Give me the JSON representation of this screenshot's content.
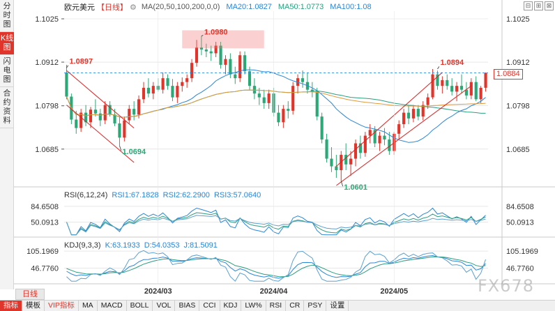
{
  "side_tabs": [
    {
      "label": "分时图",
      "active": false
    },
    {
      "label": "K线图",
      "active": true
    },
    {
      "label": "闪电图",
      "active": false
    },
    {
      "label": "合约资料",
      "active": false
    }
  ],
  "legend": {
    "symbol": "欧元美元",
    "period": "【日线】",
    "gear": "⚙",
    "ma_label": "MA(20,50,100,200,0,0)",
    "ma20": "MA20:1.0827",
    "ma50": "MA50:1.0773",
    "ma100": "MA100:1.08"
  },
  "rsi_legend": {
    "label": "RSI(6,12,24)",
    "rsi1": "RSI1:67.1828",
    "rsi2": "RSI2:62.2900",
    "rsi3": "RSI3:57.0640"
  },
  "kdj_legend": {
    "label": "KDJ(9,3,3)",
    "k": "K:63.1933",
    "d": "D:54.0353",
    "j": "J:81.5091"
  },
  "top_icons": [
    "⊟",
    "⊞",
    "⊠"
  ],
  "price_tag": "1.0884",
  "period_chip": "日线",
  "bottom_tabs": [
    "指标",
    "模板",
    "VIP指标",
    "MA",
    "MACD",
    "BOLL",
    "VOL",
    "BIAS",
    "CCI",
    "KDJ",
    "LW%",
    "RSI",
    "CR",
    "PSY",
    "设置"
  ],
  "watermark": "FX678",
  "colors": {
    "up": "#e0352b",
    "down": "#2aa876",
    "ma20": "#2a86d6",
    "ma50": "#2a9e7e",
    "ma100": "#e09a3a",
    "grid": "#d9d9d9"
  },
  "chart_data": {
    "type": "candlestick",
    "price_axis_ticks": [
      "1.1025",
      "1.0912",
      "1.0798",
      "1.0685"
    ],
    "price_ylim": [
      1.059,
      1.1045
    ],
    "annotations": {
      "high_1": "1.0980",
      "high_2": "1.0897",
      "low_1": "1.0694",
      "low_2": "1.0601",
      "high_3": "1.0894"
    },
    "rsi_axis_ticks": [
      "84.6508",
      "50.0913"
    ],
    "kdj_axis_ticks": [
      "105.1969",
      "46.7760"
    ],
    "x_tick_labels": [
      "2024/03",
      "2024/04",
      "2024/05"
    ],
    "candles": [
      [
        1.0885,
        1.0905,
        1.0815,
        1.0822
      ],
      [
        1.0822,
        1.083,
        1.075,
        1.0762
      ],
      [
        1.0762,
        1.0785,
        1.0725,
        1.074
      ],
      [
        1.074,
        1.079,
        1.073,
        1.078
      ],
      [
        1.078,
        1.08,
        1.0745,
        1.0755
      ],
      [
        1.0755,
        1.0795,
        1.074,
        1.0788
      ],
      [
        1.0788,
        1.0815,
        1.077,
        1.0778
      ],
      [
        1.0778,
        1.079,
        1.0745,
        1.076
      ],
      [
        1.076,
        1.081,
        1.075,
        1.08
      ],
      [
        1.08,
        1.081,
        1.077,
        1.0775
      ],
      [
        1.0775,
        1.079,
        1.0745,
        1.0752
      ],
      [
        1.0752,
        1.077,
        1.0694,
        1.0715
      ],
      [
        1.0715,
        1.077,
        1.0705,
        1.076
      ],
      [
        1.076,
        1.08,
        1.075,
        1.079
      ],
      [
        1.079,
        1.081,
        1.076,
        1.0775
      ],
      [
        1.0775,
        1.0825,
        1.0765,
        1.0815
      ],
      [
        1.0815,
        1.086,
        1.0805,
        1.0845
      ],
      [
        1.0845,
        1.087,
        1.082,
        1.083
      ],
      [
        1.083,
        1.086,
        1.0815,
        1.085
      ],
      [
        1.085,
        1.087,
        1.0835,
        1.084
      ],
      [
        1.084,
        1.0885,
        1.083,
        1.087
      ],
      [
        1.087,
        1.088,
        1.084,
        1.085
      ],
      [
        1.085,
        1.0868,
        1.081,
        1.082
      ],
      [
        1.082,
        1.086,
        1.0805,
        1.085
      ],
      [
        1.085,
        1.0872,
        1.0835,
        1.086
      ],
      [
        1.086,
        1.088,
        1.0845,
        1.087
      ],
      [
        1.087,
        1.092,
        1.086,
        1.091
      ],
      [
        1.091,
        1.097,
        1.09,
        1.095
      ],
      [
        1.095,
        1.098,
        1.093,
        1.0945
      ],
      [
        1.0945,
        1.096,
        1.0925,
        1.094
      ],
      [
        1.094,
        1.0955,
        1.0915,
        1.0935
      ],
      [
        1.0935,
        1.0965,
        1.0925,
        1.0955
      ],
      [
        1.0955,
        1.0965,
        1.0895,
        1.0905
      ],
      [
        1.0905,
        1.093,
        1.088,
        1.092
      ],
      [
        1.092,
        1.0935,
        1.087,
        1.088
      ],
      [
        1.088,
        1.09,
        1.0855,
        1.087
      ],
      [
        1.087,
        1.094,
        1.086,
        1.093
      ],
      [
        1.093,
        1.094,
        1.088,
        1.0888
      ],
      [
        1.0888,
        1.09,
        1.084,
        1.085
      ],
      [
        1.085,
        1.087,
        1.0815,
        1.083
      ],
      [
        1.083,
        1.0845,
        1.08,
        1.082
      ],
      [
        1.082,
        1.084,
        1.079,
        1.0805
      ],
      [
        1.0805,
        1.084,
        1.079,
        1.083
      ],
      [
        1.083,
        1.0845,
        1.077,
        1.078
      ],
      [
        1.078,
        1.08,
        1.0745,
        1.0755
      ],
      [
        1.0755,
        1.08,
        1.074,
        1.079
      ],
      [
        1.079,
        1.081,
        1.0765,
        1.0785
      ],
      [
        1.0785,
        1.086,
        1.0775,
        1.085
      ],
      [
        1.085,
        1.088,
        1.083,
        1.087
      ],
      [
        1.087,
        1.089,
        1.0845,
        1.086
      ],
      [
        1.086,
        1.0885,
        1.083,
        1.084
      ],
      [
        1.084,
        1.086,
        1.082,
        1.0835
      ],
      [
        1.0835,
        1.0845,
        1.076,
        1.077
      ],
      [
        1.077,
        1.078,
        1.07,
        1.071
      ],
      [
        1.071,
        1.0725,
        1.065,
        1.066
      ],
      [
        1.066,
        1.069,
        1.0625,
        1.064
      ],
      [
        1.064,
        1.067,
        1.061,
        1.063
      ],
      [
        1.063,
        1.068,
        1.0601,
        1.067
      ],
      [
        1.067,
        1.07,
        1.063,
        1.0645
      ],
      [
        1.0645,
        1.068,
        1.0615,
        1.066
      ],
      [
        1.066,
        1.071,
        1.064,
        1.07
      ],
      [
        1.07,
        1.072,
        1.066,
        1.0675
      ],
      [
        1.0675,
        1.073,
        1.0665,
        1.072
      ],
      [
        1.072,
        1.075,
        1.07,
        1.0735
      ],
      [
        1.0735,
        1.0745,
        1.069,
        1.07
      ],
      [
        1.07,
        1.073,
        1.068,
        1.072
      ],
      [
        1.072,
        1.074,
        1.0695,
        1.071
      ],
      [
        1.071,
        1.073,
        1.067,
        1.068
      ],
      [
        1.068,
        1.073,
        1.067,
        1.0725
      ],
      [
        1.0725,
        1.076,
        1.071,
        1.075
      ],
      [
        1.075,
        1.079,
        1.074,
        1.078
      ],
      [
        1.078,
        1.08,
        1.075,
        1.0765
      ],
      [
        1.0765,
        1.08,
        1.0755,
        1.079
      ],
      [
        1.079,
        1.08,
        1.076,
        1.077
      ],
      [
        1.077,
        1.081,
        1.076,
        1.08
      ],
      [
        1.08,
        1.083,
        1.079,
        1.082
      ],
      [
        1.082,
        1.0894,
        1.0815,
        1.088
      ],
      [
        1.088,
        1.089,
        1.084,
        1.085
      ],
      [
        1.085,
        1.0875,
        1.083,
        1.0865
      ],
      [
        1.0865,
        1.088,
        1.084,
        1.085
      ],
      [
        1.085,
        1.087,
        1.0825,
        1.0835
      ],
      [
        1.0835,
        1.086,
        1.081,
        1.085
      ],
      [
        1.085,
        1.088,
        1.083,
        1.084
      ],
      [
        1.084,
        1.086,
        1.0815,
        1.0825
      ],
      [
        1.0825,
        1.087,
        1.0815,
        1.086
      ],
      [
        1.086,
        1.0875,
        1.081,
        1.0815
      ],
      [
        1.0815,
        1.085,
        1.0805,
        1.0845
      ],
      [
        1.0845,
        1.0885,
        1.0835,
        1.0884
      ]
    ]
  }
}
